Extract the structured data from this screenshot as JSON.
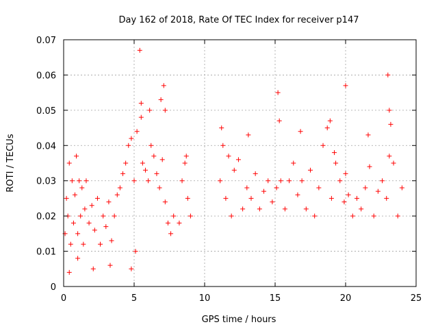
{
  "chart_data": {
    "type": "scatter",
    "title": "Day 162 of 2018, Rate Of TEC Index for receiver p147",
    "xlabel": "GPS time / hours",
    "ylabel": "ROTI / TECUs",
    "xlim": [
      0,
      25
    ],
    "ylim": [
      0,
      0.07
    ],
    "x_ticks": [
      0,
      5,
      10,
      15,
      20,
      25
    ],
    "x_tick_labels": [
      "0",
      "5",
      "10",
      "15",
      "20",
      "25"
    ],
    "y_ticks": [
      0,
      0.01,
      0.02,
      0.03,
      0.04,
      0.05,
      0.06,
      0.07
    ],
    "y_tick_labels": [
      "0",
      "0.01",
      "0.02",
      "0.03",
      "0.04",
      "0.05",
      "0.06",
      "0.07"
    ],
    "grid": true,
    "marker": "plus",
    "color": "#ff0000",
    "series": [
      {
        "name": "ROTI",
        "x": [
          0.1,
          0.2,
          0.3,
          0.4,
          0.5,
          0.6,
          0.7,
          0.8,
          0.9,
          1.0,
          1.1,
          1.2,
          1.3,
          1.4,
          1.5,
          1.6,
          1.8,
          2.0,
          2.2,
          2.4,
          2.6,
          2.8,
          3.0,
          3.2,
          3.4,
          3.6,
          3.8,
          4.0,
          4.2,
          4.4,
          4.6,
          4.8,
          5.0,
          5.2,
          5.5,
          5.6,
          5.8,
          6.0,
          6.2,
          6.4,
          6.6,
          6.8,
          7.0,
          7.2,
          7.4,
          7.6,
          7.8,
          8.2,
          8.4,
          8.6,
          8.8,
          9.0,
          11.1,
          11.3,
          11.5,
          11.7,
          11.9,
          12.1,
          12.4,
          12.7,
          13.0,
          13.3,
          13.6,
          13.9,
          14.2,
          14.5,
          14.8,
          15.1,
          15.4,
          15.7,
          16.0,
          16.3,
          16.6,
          16.9,
          17.2,
          17.5,
          17.8,
          18.1,
          18.4,
          18.7,
          19.0,
          19.3,
          19.6,
          19.9,
          20.0,
          20.2,
          20.5,
          20.8,
          21.1,
          21.4,
          21.7,
          22.0,
          22.3,
          22.6,
          22.9,
          23.1,
          23.4,
          23.7,
          24.0,
          0.4,
          1.0,
          2.1,
          3.3,
          4.8,
          5.1,
          5.4,
          5.5,
          6.1,
          6.9,
          7.1,
          7.2,
          8.7,
          11.2,
          13.1,
          15.2,
          15.3,
          16.8,
          18.9,
          19.2,
          20.0,
          21.6,
          23.0,
          23.1,
          23.2
        ],
        "y": [
          0.015,
          0.025,
          0.02,
          0.035,
          0.012,
          0.03,
          0.018,
          0.026,
          0.037,
          0.015,
          0.03,
          0.02,
          0.028,
          0.012,
          0.022,
          0.03,
          0.018,
          0.023,
          0.016,
          0.025,
          0.012,
          0.02,
          0.017,
          0.024,
          0.013,
          0.02,
          0.026,
          0.028,
          0.032,
          0.035,
          0.04,
          0.042,
          0.03,
          0.044,
          0.048,
          0.035,
          0.033,
          0.03,
          0.04,
          0.037,
          0.032,
          0.028,
          0.036,
          0.024,
          0.018,
          0.015,
          0.02,
          0.018,
          0.03,
          0.035,
          0.025,
          0.02,
          0.03,
          0.04,
          0.025,
          0.037,
          0.02,
          0.033,
          0.036,
          0.022,
          0.028,
          0.025,
          0.032,
          0.022,
          0.027,
          0.03,
          0.024,
          0.028,
          0.03,
          0.022,
          0.03,
          0.035,
          0.026,
          0.03,
          0.022,
          0.033,
          0.02,
          0.028,
          0.04,
          0.045,
          0.025,
          0.035,
          0.03,
          0.024,
          0.032,
          0.026,
          0.02,
          0.025,
          0.022,
          0.028,
          0.034,
          0.02,
          0.027,
          0.03,
          0.025,
          0.037,
          0.035,
          0.02,
          0.028,
          0.004,
          0.008,
          0.005,
          0.006,
          0.005,
          0.01,
          0.067,
          0.052,
          0.05,
          0.053,
          0.057,
          0.05,
          0.037,
          0.045,
          0.043,
          0.055,
          0.047,
          0.044,
          0.047,
          0.038,
          0.057,
          0.043,
          0.06,
          0.05,
          0.046
        ]
      }
    ]
  }
}
